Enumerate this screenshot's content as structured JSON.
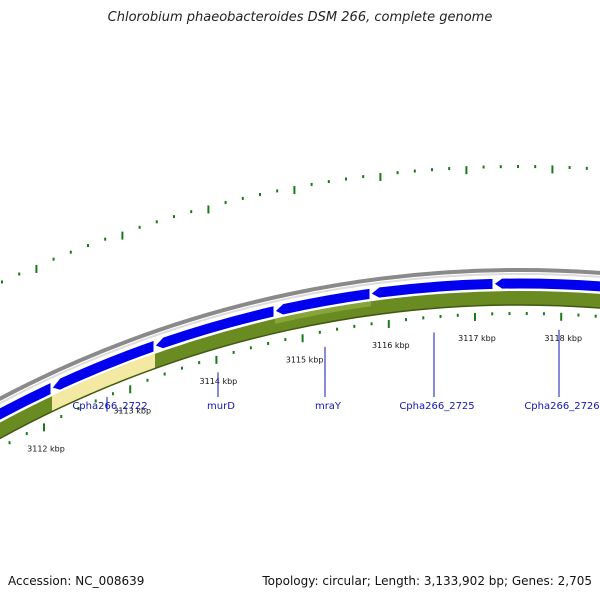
{
  "title": "Chlorobium phaeobacteroides DSM 266, complete genome",
  "footer": {
    "accession": "Accession: NC_008639",
    "summary": "Topology: circular; Length: 3,133,902 bp; Genes: 2,705"
  },
  "colors": {
    "gene_forward": "#0000ee",
    "gc_skew": "#6a8a22",
    "gc_skew_highlight": "#f4e9a3",
    "backbone": "#8a8a8a",
    "label": "#1414b4",
    "ticks": "#1a7a1a"
  },
  "scale": {
    "ticks": [
      {
        "kbp": 3112,
        "label": "3112 kbp"
      },
      {
        "kbp": 3113,
        "label": "3113 kbp"
      },
      {
        "kbp": 3114,
        "label": "3114 kbp"
      },
      {
        "kbp": 3115,
        "label": "3115 kbp"
      },
      {
        "kbp": 3116,
        "label": "3116 kbp"
      },
      {
        "kbp": 3117,
        "label": "3117 kbp"
      },
      {
        "kbp": 3118,
        "label": "3118 kbp"
      }
    ]
  },
  "genes": [
    {
      "name": "Cpha266_2722",
      "strand": "-"
    },
    {
      "name": "murD",
      "strand": "-"
    },
    {
      "name": "mraY",
      "strand": "-"
    },
    {
      "name": "Cpha266_2725",
      "strand": "-"
    },
    {
      "name": "Cpha266_2726",
      "strand": "-"
    }
  ]
}
